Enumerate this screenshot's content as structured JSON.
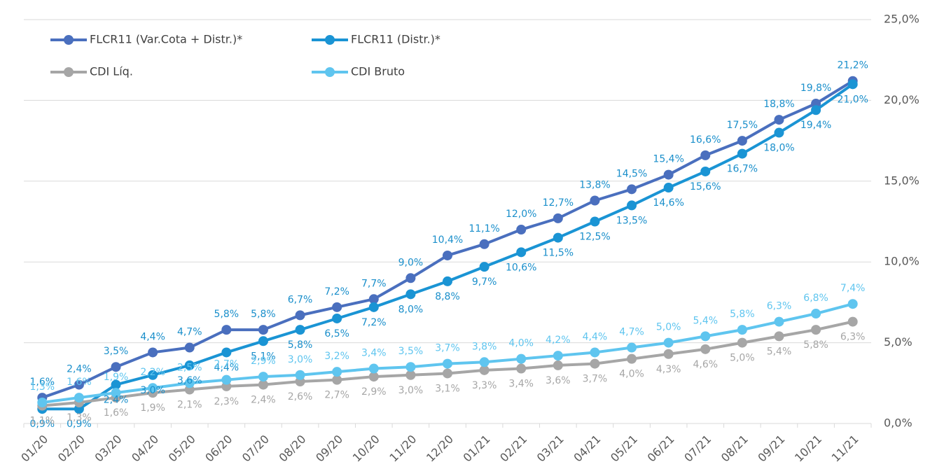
{
  "chart_data": {
    "type": "line",
    "categories": [
      "01/20",
      "02/20",
      "03/20",
      "04/20",
      "05/20",
      "06/20",
      "07/20",
      "08/20",
      "09/20",
      "10/20",
      "11/20",
      "12/20",
      "01/21",
      "02/21",
      "03/21",
      "04/21",
      "05/21",
      "06/21",
      "07/21",
      "08/21",
      "09/21",
      "10/21",
      "11/21"
    ],
    "series": [
      {
        "name": "FLCR11 (Var.Cota + Distr.)*",
        "color": "#4a6fbe",
        "label_color": "#1a8fcb",
        "label_position": "above",
        "values": [
          1.6,
          2.4,
          3.5,
          4.4,
          4.7,
          5.8,
          5.8,
          6.7,
          7.2,
          7.7,
          9.0,
          10.4,
          11.1,
          12.0,
          12.7,
          13.8,
          14.5,
          15.4,
          16.6,
          17.5,
          18.8,
          19.8,
          21.2
        ],
        "value_labels": [
          "1,6%",
          "2,4%",
          "3,5%",
          "4,4%",
          "4,7%",
          "5,8%",
          "5,8%",
          "6,7%",
          "7,2%",
          "7,7%",
          "9,0%",
          "10,4%",
          "11,1%",
          "12,0%",
          "12,7%",
          "13,8%",
          "14,5%",
          "15,4%",
          "16,6%",
          "17,5%",
          "18,8%",
          "19,8%",
          "21,2%"
        ]
      },
      {
        "name": "FLCR11 (Distr.)*",
        "color": "#1a94d4",
        "label_color": "#1a8fcb",
        "label_position": "below",
        "values": [
          0.9,
          0.9,
          2.4,
          3.0,
          3.6,
          4.4,
          5.1,
          5.8,
          6.5,
          7.2,
          8.0,
          8.8,
          9.7,
          10.6,
          11.5,
          12.5,
          13.5,
          14.6,
          15.6,
          16.7,
          18.0,
          19.4,
          21.0
        ],
        "value_labels": [
          "0,9%",
          "0,9%",
          "2,4%",
          "3,0%",
          "3,6%",
          "4,4%",
          "5,1%",
          "5,8%",
          "6,5%",
          "7,2%",
          "8,0%",
          "8,8%",
          "9,7%",
          "10,6%",
          "11,5%",
          "12,5%",
          "13,5%",
          "14,6%",
          "15,6%",
          "16,7%",
          "18,0%",
          "19,4%",
          "21,0%"
        ]
      },
      {
        "name": "CDI Líq.",
        "color": "#a6a6a6",
        "label_color": "#a6a6a6",
        "label_position": "below",
        "values": [
          1.1,
          1.3,
          1.6,
          1.9,
          2.1,
          2.3,
          2.4,
          2.6,
          2.7,
          2.9,
          3.0,
          3.1,
          3.3,
          3.4,
          3.6,
          3.7,
          4.0,
          4.3,
          4.6,
          5.0,
          5.4,
          5.8,
          6.3
        ],
        "value_labels": [
          "1,1%",
          "1,3%",
          "1,6%",
          "1,9%",
          "2,1%",
          "2,3%",
          "2,4%",
          "2,6%",
          "2,7%",
          "2,9%",
          "3,0%",
          "3,1%",
          "3,3%",
          "3,4%",
          "3,6%",
          "3,7%",
          "4,0%",
          "4,3%",
          "4,6%",
          "5,0%",
          "5,4%",
          "5,8%",
          "6,3%"
        ]
      },
      {
        "name": "CDI Bruto",
        "color": "#5fc5ef",
        "label_color": "#5fc5ef",
        "label_position": "above",
        "values": [
          1.3,
          1.6,
          1.9,
          2.2,
          2.5,
          2.7,
          2.9,
          3.0,
          3.2,
          3.4,
          3.5,
          3.7,
          3.8,
          4.0,
          4.2,
          4.4,
          4.7,
          5.0,
          5.4,
          5.8,
          6.3,
          6.8,
          7.4
        ],
        "value_labels": [
          "1,3%",
          "1,6%",
          "1,9%",
          "2,2%",
          "2,5%",
          "2,7%",
          "2,9%",
          "3,0%",
          "3,2%",
          "3,4%",
          "3,5%",
          "3,7%",
          "3,8%",
          "4,0%",
          "4,2%",
          "4,4%",
          "4,7%",
          "5,0%",
          "5,4%",
          "5,8%",
          "6,3%",
          "6,8%",
          "7,4%"
        ]
      }
    ],
    "ylim": [
      0,
      25
    ],
    "yticks": [
      {
        "value": 0,
        "label": "0,0%"
      },
      {
        "value": 5,
        "label": "5,0%"
      },
      {
        "value": 10,
        "label": "10,0%"
      },
      {
        "value": 15,
        "label": "15,0%"
      },
      {
        "value": 20,
        "label": "20,0%"
      },
      {
        "value": 25,
        "label": "25,0%"
      }
    ],
    "grid": true,
    "y_axis_side": "right",
    "legend": "upper left"
  }
}
